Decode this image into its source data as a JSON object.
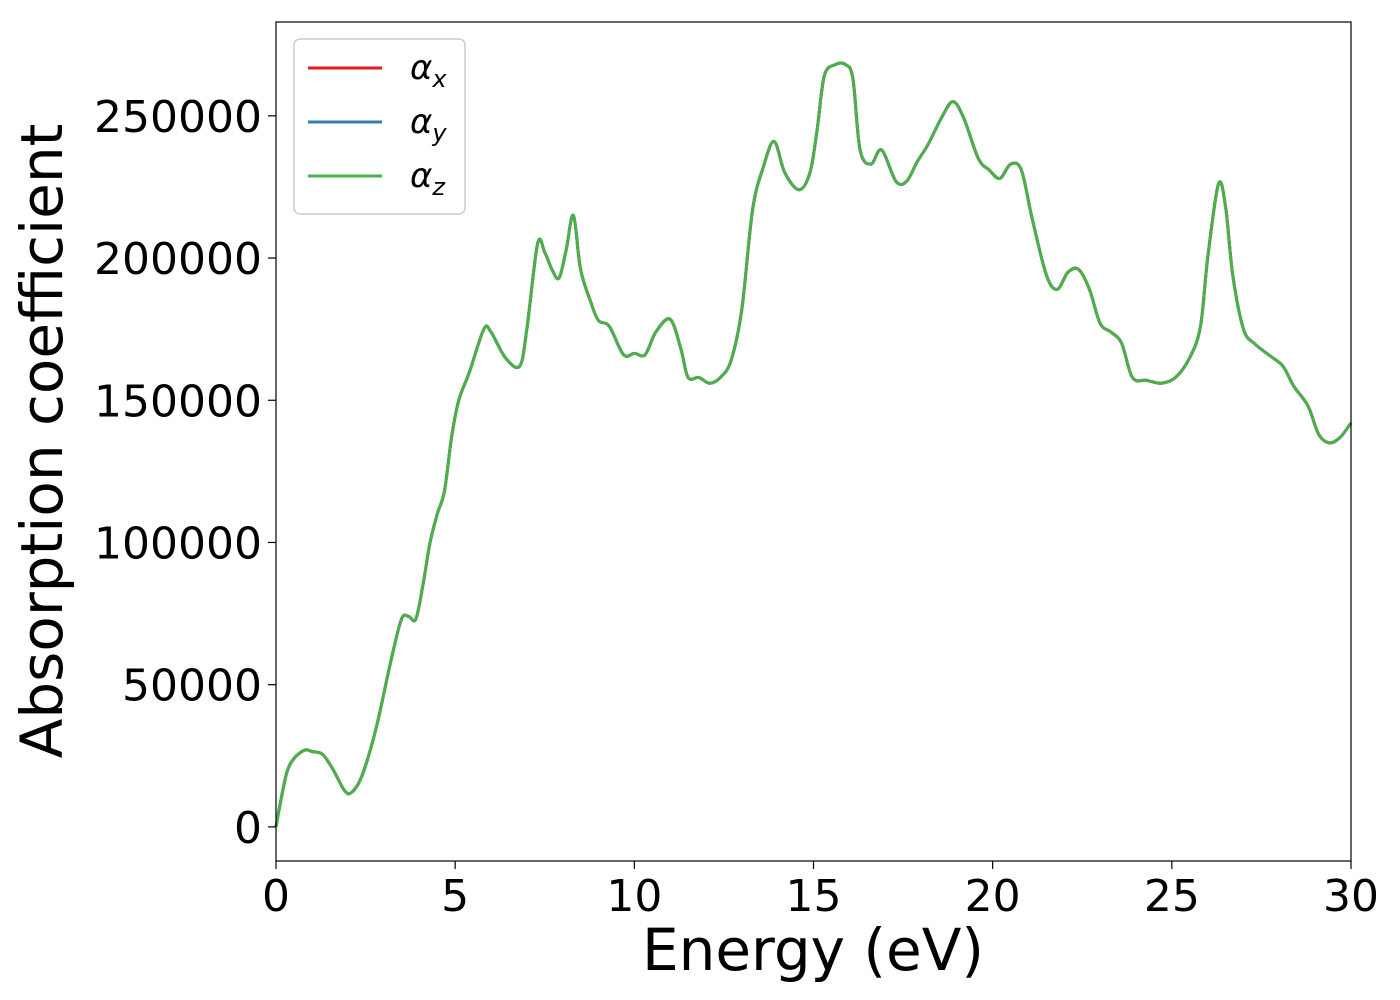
{
  "chart_data": {
    "type": "line",
    "title": "",
    "xlabel": "Energy (eV)",
    "ylabel": "Absorption coefficient",
    "xlim": [
      0,
      30
    ],
    "ylim": [
      -12000,
      283000
    ],
    "xticks": [
      0,
      5,
      10,
      15,
      20,
      25,
      30
    ],
    "yticks": [
      0,
      50000,
      100000,
      150000,
      200000,
      250000
    ],
    "xtick_labels": [
      "0",
      "5",
      "10",
      "15",
      "20",
      "25",
      "30"
    ],
    "ytick_labels": [
      "0",
      "50000",
      "100000",
      "150000",
      "200000",
      "250000"
    ],
    "grid": false,
    "legend_position": "top-left",
    "x": [
      0,
      0.1,
      0.3,
      0.5,
      0.8,
      1.0,
      1.3,
      1.6,
      1.9,
      2.1,
      2.4,
      2.8,
      3.2,
      3.5,
      3.7,
      3.9,
      4.1,
      4.3,
      4.5,
      4.7,
      4.9,
      5.1,
      5.4,
      5.8,
      6.0,
      6.4,
      6.8,
      7.0,
      7.3,
      7.5,
      7.7,
      7.9,
      8.1,
      8.3,
      8.5,
      8.8,
      9.0,
      9.3,
      9.7,
      10.0,
      10.3,
      10.6,
      11.0,
      11.3,
      11.5,
      11.8,
      12.1,
      12.4,
      12.7,
      13.0,
      13.3,
      13.6,
      13.9,
      14.2,
      14.6,
      14.9,
      15.1,
      15.3,
      15.6,
      15.9,
      16.1,
      16.3,
      16.6,
      16.9,
      17.3,
      17.6,
      17.9,
      18.2,
      18.6,
      18.9,
      19.2,
      19.6,
      19.9,
      20.2,
      20.5,
      20.8,
      21.1,
      21.5,
      21.8,
      22.1,
      22.4,
      22.7,
      23.0,
      23.3,
      23.6,
      23.9,
      24.3,
      24.7,
      25.1,
      25.5,
      25.8,
      26.0,
      26.3,
      26.5,
      26.7,
      27.0,
      27.3,
      27.7,
      28.1,
      28.4,
      28.8,
      29.1,
      29.4,
      29.7,
      30.0
    ],
    "series": [
      {
        "name": "α_x",
        "color": "#e41a1c",
        "values": [
          0,
          7000,
          19000,
          24000,
          27000,
          26500,
          25500,
          20000,
          13000,
          12000,
          18000,
          35000,
          58000,
          73000,
          74000,
          73000,
          85000,
          100000,
          110000,
          118000,
          137000,
          150000,
          160000,
          175000,
          174000,
          165000,
          162000,
          175000,
          205000,
          202000,
          196000,
          193000,
          203000,
          215000,
          196000,
          184000,
          178000,
          176000,
          166000,
          166500,
          166000,
          174000,
          178500,
          168000,
          158000,
          158000,
          156000,
          158000,
          164000,
          182000,
          217000,
          232000,
          241000,
          230000,
          224000,
          230000,
          245000,
          264000,
          268000,
          268000,
          263000,
          238000,
          233000,
          238000,
          227000,
          227000,
          234000,
          240000,
          250000,
          255000,
          249000,
          235000,
          231000,
          228000,
          233000,
          231000,
          214000,
          194000,
          189000,
          195000,
          196000,
          189000,
          177000,
          174000,
          170000,
          158000,
          157000,
          156000,
          158000,
          165000,
          176000,
          200000,
          226000,
          218000,
          194000,
          175000,
          170000,
          166000,
          162000,
          155000,
          148000,
          138000,
          135000,
          137000,
          142000
        ]
      },
      {
        "name": "α_y",
        "color": "#377eb8",
        "values": [
          0,
          7000,
          19000,
          24000,
          27000,
          26500,
          25500,
          20000,
          13000,
          12000,
          18000,
          35000,
          58000,
          73000,
          74000,
          73000,
          85000,
          100000,
          110000,
          118000,
          137000,
          150000,
          160000,
          175000,
          174000,
          165000,
          162000,
          175000,
          205000,
          202000,
          196000,
          193000,
          203000,
          215000,
          196000,
          184000,
          178000,
          176000,
          166000,
          166500,
          166000,
          174000,
          178500,
          168000,
          158000,
          158000,
          156000,
          158000,
          164000,
          182000,
          217000,
          232000,
          241000,
          230000,
          224000,
          230000,
          245000,
          264000,
          268000,
          268000,
          263000,
          238000,
          233000,
          238000,
          227000,
          227000,
          234000,
          240000,
          250000,
          255000,
          249000,
          235000,
          231000,
          228000,
          233000,
          231000,
          214000,
          194000,
          189000,
          195000,
          196000,
          189000,
          177000,
          174000,
          170000,
          158000,
          157000,
          156000,
          158000,
          165000,
          176000,
          200000,
          226000,
          218000,
          194000,
          175000,
          170000,
          166000,
          162000,
          155000,
          148000,
          138000,
          135000,
          137000,
          142000
        ]
      },
      {
        "name": "α_z",
        "color": "#4daf4a",
        "values": [
          0,
          7000,
          19000,
          24000,
          27000,
          26500,
          25500,
          20000,
          13000,
          12000,
          18000,
          35000,
          58000,
          73000,
          74000,
          73000,
          85000,
          100000,
          110000,
          118000,
          137000,
          150000,
          160000,
          175000,
          174000,
          165000,
          162000,
          175000,
          205000,
          202000,
          196000,
          193000,
          203000,
          215000,
          196000,
          184000,
          178000,
          176000,
          166000,
          166500,
          166000,
          174000,
          178500,
          168000,
          158000,
          158000,
          156000,
          158000,
          164000,
          182000,
          217000,
          232000,
          241000,
          230000,
          224000,
          230000,
          245000,
          264000,
          268000,
          268000,
          263000,
          238000,
          233000,
          238000,
          227000,
          227000,
          234000,
          240000,
          250000,
          255000,
          249000,
          235000,
          231000,
          228000,
          233000,
          231000,
          214000,
          194000,
          189000,
          195000,
          196000,
          189000,
          177000,
          174000,
          170000,
          158000,
          157000,
          156000,
          158000,
          165000,
          176000,
          200000,
          226000,
          218000,
          194000,
          175000,
          170000,
          166000,
          162000,
          155000,
          148000,
          138000,
          135000,
          137000,
          142000
        ]
      }
    ],
    "legend": [
      {
        "symbol": "α",
        "subscript": "x",
        "color": "#e41a1c"
      },
      {
        "symbol": "α",
        "subscript": "y",
        "color": "#377eb8"
      },
      {
        "symbol": "α",
        "subscript": "z",
        "color": "#4daf4a"
      }
    ]
  }
}
